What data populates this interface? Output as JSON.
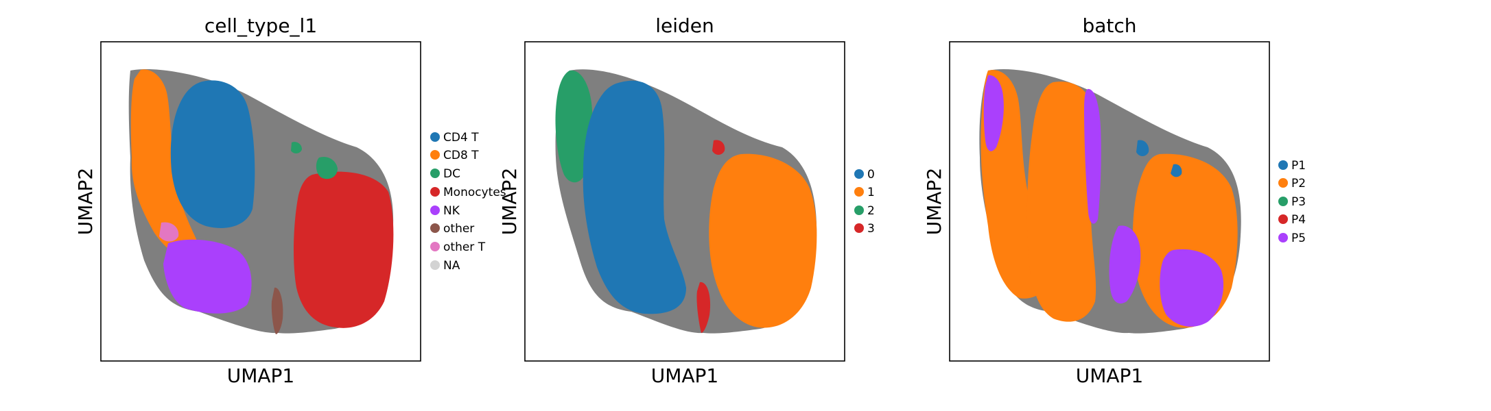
{
  "chart_data": [
    {
      "type": "scatter",
      "title": "cell_type_l1",
      "xlabel": "UMAP1",
      "ylabel": "UMAP2",
      "grid": false,
      "legend_position": "right",
      "categories": [
        "CD4 T",
        "CD8 T",
        "DC",
        "Monocytes",
        "NK",
        "other",
        "other T",
        "NA"
      ],
      "colors": [
        "#1f77b4",
        "#ff7f0e",
        "#279e68",
        "#d62728",
        "#aa40fc",
        "#8c564b",
        "#e377c2",
        "#d3d3d3"
      ]
    },
    {
      "type": "scatter",
      "title": "leiden",
      "xlabel": "UMAP1",
      "ylabel": "UMAP2",
      "grid": false,
      "legend_position": "right",
      "categories": [
        "0",
        "1",
        "2",
        "3"
      ],
      "colors": [
        "#1f77b4",
        "#ff7f0e",
        "#279e68",
        "#d62728"
      ]
    },
    {
      "type": "scatter",
      "title": "batch",
      "xlabel": "UMAP1",
      "ylabel": "UMAP2",
      "grid": false,
      "legend_position": "right",
      "categories": [
        "P1",
        "P2",
        "P3",
        "P4",
        "P5"
      ],
      "colors": [
        "#1f77b4",
        "#ff7f0e",
        "#279e68",
        "#d62728",
        "#aa40fc"
      ]
    }
  ],
  "colors": {
    "edges": "#7f7f7f",
    "frame": "#000000"
  }
}
